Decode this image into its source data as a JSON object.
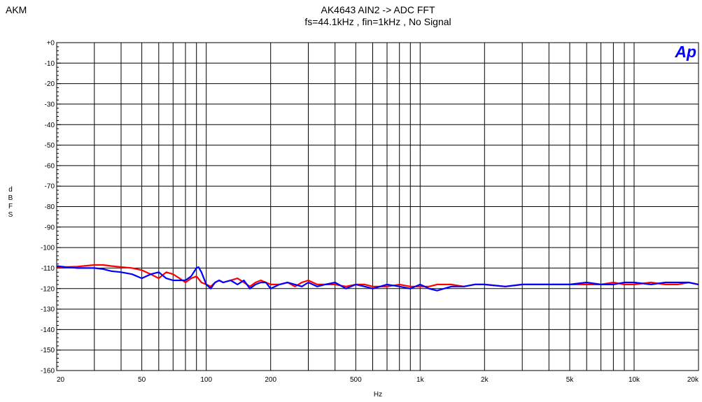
{
  "brand": "AKM",
  "title_lines": [
    "AK4643  AIN2 -> ADC    FFT",
    "fs=44.1kHz , fin=1kHz , No Signal"
  ],
  "ylabel_letters": [
    "d",
    "B",
    "F",
    "S"
  ],
  "xlabel": "Hz",
  "logo_text": "Ap",
  "colors": {
    "series1": "#ff0000",
    "series2": "#0000ff",
    "logo": "#0000ff",
    "grid": "#000000"
  },
  "chart_data": {
    "type": "line",
    "x_scale": "log",
    "xlim": [
      20,
      20000
    ],
    "ylim": [
      -160,
      0
    ],
    "grid": true,
    "xlabel": "Hz",
    "ylabel": "dBFS",
    "x_ticks": [
      20,
      50,
      100,
      200,
      500,
      1000,
      2000,
      5000,
      10000,
      20000
    ],
    "x_tick_labels": [
      "20",
      "50",
      "100",
      "200",
      "500",
      "1k",
      "2k",
      "5k",
      "10k",
      "20k"
    ],
    "y_ticks": [
      0,
      -10,
      -20,
      -30,
      -40,
      -50,
      -60,
      -70,
      -80,
      -90,
      -100,
      -110,
      -120,
      -130,
      -140,
      -150,
      -160
    ],
    "y_tick_labels": [
      "+0",
      "-10",
      "-20",
      "-30",
      "-40",
      "-50",
      "-60",
      "-70",
      "-80",
      "-90",
      "-100",
      "-110",
      "-120",
      "-130",
      "-140",
      "-150",
      "-160"
    ],
    "series": [
      {
        "color": "#ff0000",
        "x": [
          20,
          22,
          25,
          28,
          30,
          33,
          36,
          40,
          45,
          50,
          55,
          60,
          65,
          70,
          75,
          80,
          85,
          90,
          95,
          100,
          105,
          110,
          115,
          120,
          130,
          140,
          150,
          160,
          170,
          180,
          190,
          200,
          220,
          240,
          260,
          280,
          300,
          330,
          360,
          400,
          450,
          500,
          550,
          600,
          700,
          800,
          900,
          1000,
          1100,
          1200,
          1400,
          1600,
          1800,
          2000,
          2500,
          3000,
          3500,
          4000,
          5000,
          6000,
          7000,
          8000,
          9000,
          10000,
          12000,
          14000,
          16000,
          18000,
          20000
        ],
        "y": [
          -109.5,
          -109.5,
          -109.3,
          -108.8,
          -108.5,
          -108.5,
          -109,
          -109.5,
          -110,
          -111,
          -113,
          -115,
          -112,
          -113,
          -115,
          -117,
          -115,
          -114,
          -117,
          -118,
          -119,
          -117,
          -116,
          -117,
          -116,
          -115,
          -117,
          -119,
          -117,
          -116,
          -117,
          -118,
          -118,
          -117,
          -119,
          -117,
          -116,
          -118,
          -118,
          -118,
          -119,
          -118,
          -118,
          -119,
          -119,
          -118,
          -119,
          -119,
          -119,
          -118,
          -118,
          -119,
          -118,
          -118,
          -119,
          -118,
          -118,
          -118,
          -118,
          -118,
          -118,
          -117,
          -118,
          -118,
          -117,
          -118,
          -118,
          -117,
          -118
        ]
      },
      {
        "color": "#0000ff",
        "x": [
          20,
          22,
          25,
          28,
          30,
          33,
          36,
          40,
          45,
          50,
          55,
          60,
          65,
          70,
          75,
          80,
          85,
          90,
          92,
          95,
          100,
          105,
          110,
          115,
          120,
          130,
          140,
          150,
          160,
          170,
          180,
          190,
          200,
          220,
          240,
          260,
          280,
          300,
          330,
          360,
          400,
          450,
          500,
          550,
          600,
          700,
          800,
          900,
          1000,
          1100,
          1200,
          1400,
          1600,
          1800,
          2000,
          2500,
          3000,
          3500,
          4000,
          5000,
          6000,
          7000,
          8000,
          9000,
          10000,
          12000,
          14000,
          16000,
          18000,
          20000
        ],
        "y": [
          -109,
          -109.5,
          -110,
          -110,
          -110,
          -110.5,
          -111.5,
          -112,
          -113,
          -115,
          -113,
          -112,
          -115,
          -116,
          -116,
          -116,
          -114,
          -110,
          -109.5,
          -112,
          -118,
          -120,
          -117,
          -116,
          -117,
          -116,
          -118,
          -116,
          -120,
          -118,
          -117,
          -117,
          -120,
          -118,
          -117,
          -118,
          -119,
          -117,
          -119,
          -118,
          -117,
          -120,
          -118,
          -119,
          -120,
          -118,
          -119,
          -120,
          -118,
          -120,
          -121,
          -119,
          -119,
          -118,
          -118,
          -119,
          -118,
          -118,
          -118,
          -118,
          -117,
          -118,
          -118,
          -117,
          -117,
          -118,
          -117,
          -117,
          -117,
          -118
        ]
      }
    ]
  }
}
